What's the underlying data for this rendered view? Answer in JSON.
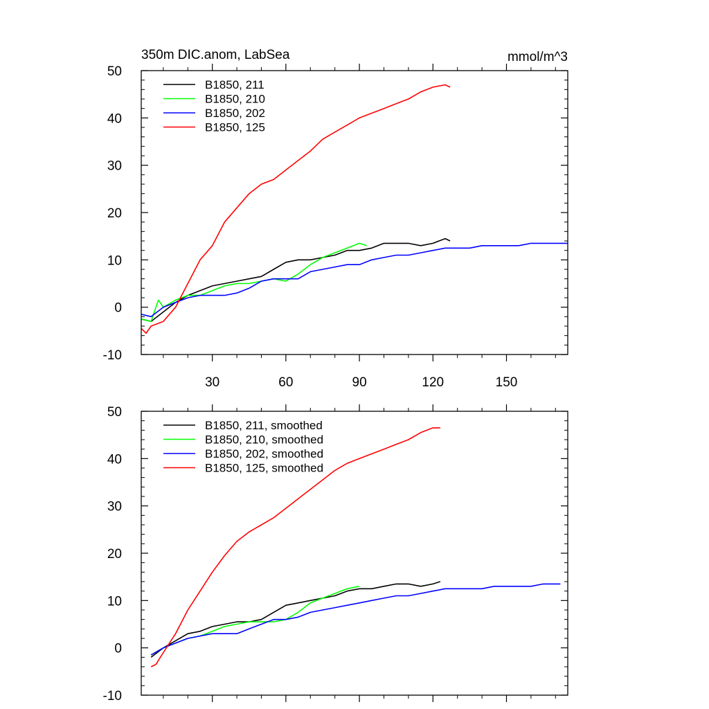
{
  "chart_data": [
    {
      "type": "line",
      "title": "350m DIC.anom, LabSea",
      "units": "mmol/m^3",
      "xlim": [
        1,
        175
      ],
      "ylim": [
        -10,
        50
      ],
      "xticks": [
        30,
        60,
        90,
        120,
        150
      ],
      "yticks": [
        -10,
        0,
        10,
        20,
        30,
        40,
        50
      ],
      "grid": false,
      "legend": "top-left",
      "series": [
        {
          "name": "B1850, 211",
          "color": "#000000",
          "x": [
            1,
            5,
            10,
            15,
            20,
            25,
            30,
            35,
            40,
            45,
            50,
            55,
            60,
            65,
            70,
            75,
            80,
            85,
            90,
            95,
            100,
            105,
            110,
            115,
            120,
            125,
            127
          ],
          "y": [
            -2.5,
            -3,
            -1,
            1,
            2.5,
            3.5,
            4.5,
            5,
            5.5,
            6,
            6.5,
            8,
            9.5,
            10,
            10,
            10.5,
            11,
            12,
            12,
            12.5,
            13.5,
            13.5,
            13.5,
            13,
            13.5,
            14.5,
            14
          ]
        },
        {
          "name": "B1850, 210",
          "color": "#00ff00",
          "x": [
            1,
            5,
            8,
            10,
            15,
            20,
            25,
            30,
            35,
            40,
            45,
            50,
            55,
            60,
            65,
            70,
            75,
            80,
            85,
            90,
            93
          ],
          "y": [
            -2.5,
            -3,
            1.5,
            0,
            1.5,
            2.5,
            2.5,
            3.5,
            4.5,
            5,
            5,
            5.5,
            6,
            5.5,
            7,
            9,
            10.5,
            11.5,
            12.5,
            13.5,
            13
          ]
        },
        {
          "name": "B1850, 202",
          "color": "#0000ff",
          "x": [
            1,
            5,
            10,
            15,
            20,
            25,
            30,
            35,
            40,
            45,
            50,
            55,
            60,
            65,
            70,
            75,
            80,
            85,
            90,
            95,
            100,
            105,
            110,
            115,
            120,
            125,
            130,
            135,
            140,
            145,
            150,
            155,
            160,
            165,
            170,
            175
          ],
          "y": [
            -1.5,
            -2,
            0,
            1,
            2,
            2.5,
            2.5,
            2.5,
            3,
            4,
            5.5,
            6,
            6,
            6,
            7.5,
            8,
            8.5,
            9,
            9,
            10,
            10.5,
            11,
            11,
            11.5,
            12,
            12.5,
            12.5,
            12.5,
            13,
            13,
            13,
            13,
            13.5,
            13.5,
            13.5,
            13.5
          ]
        },
        {
          "name": "B1850, 125",
          "color": "#ff0000",
          "x": [
            1,
            3,
            5,
            10,
            15,
            20,
            25,
            30,
            35,
            40,
            45,
            50,
            55,
            60,
            65,
            70,
            75,
            80,
            85,
            90,
            95,
            100,
            105,
            110,
            115,
            120,
            125,
            127
          ],
          "y": [
            -4.5,
            -5.5,
            -4,
            -3,
            0,
            5,
            10,
            13,
            18,
            21,
            24,
            26,
            27,
            29,
            31,
            33,
            35.5,
            37,
            38.5,
            40,
            41,
            42,
            43,
            44,
            45.5,
            46.5,
            47,
            46.5
          ]
        }
      ]
    },
    {
      "type": "line",
      "xlim": [
        1,
        175
      ],
      "ylim": [
        -10,
        50
      ],
      "xticks": [
        30,
        60,
        90,
        120,
        150
      ],
      "yticks": [
        -10,
        0,
        10,
        20,
        30,
        40,
        50
      ],
      "grid": false,
      "legend": "top-left",
      "series": [
        {
          "name": "B1850, 211, smoothed",
          "color": "#000000",
          "x": [
            5,
            10,
            15,
            20,
            25,
            30,
            35,
            40,
            45,
            50,
            55,
            60,
            65,
            70,
            75,
            80,
            85,
            90,
            95,
            100,
            105,
            110,
            115,
            120,
            123
          ],
          "y": [
            -2,
            0,
            1.5,
            3,
            3.5,
            4.5,
            5,
            5.5,
            5.5,
            6,
            7.5,
            9,
            9.5,
            10,
            10.5,
            11,
            12,
            12.5,
            12.5,
            13,
            13.5,
            13.5,
            13,
            13.5,
            14
          ]
        },
        {
          "name": "B1850, 210, smoothed",
          "color": "#00ff00",
          "x": [
            5,
            10,
            15,
            20,
            25,
            30,
            35,
            40,
            45,
            50,
            55,
            60,
            65,
            70,
            75,
            80,
            85,
            90
          ],
          "y": [
            -1.5,
            0,
            1,
            2,
            2.5,
            3.5,
            4.5,
            5,
            5.5,
            5.5,
            5.5,
            6,
            7.5,
            9.5,
            10.5,
            11.5,
            12.5,
            13
          ]
        },
        {
          "name": "B1850, 202, smoothed",
          "color": "#0000ff",
          "x": [
            5,
            10,
            15,
            20,
            25,
            30,
            35,
            40,
            45,
            50,
            55,
            60,
            65,
            70,
            75,
            80,
            85,
            90,
            95,
            100,
            105,
            110,
            115,
            120,
            125,
            130,
            135,
            140,
            145,
            150,
            155,
            160,
            165,
            170,
            172
          ],
          "y": [
            -1.5,
            0,
            1,
            2,
            2.5,
            3,
            3,
            3,
            4,
            5,
            6,
            6,
            6.5,
            7.5,
            8,
            8.5,
            9,
            9.5,
            10,
            10.5,
            11,
            11,
            11.5,
            12,
            12.5,
            12.5,
            12.5,
            12.5,
            13,
            13,
            13,
            13,
            13.5,
            13.5,
            13.5
          ]
        },
        {
          "name": "B1850, 125, smoothed",
          "color": "#ff0000",
          "x": [
            5,
            7,
            10,
            15,
            20,
            25,
            30,
            35,
            40,
            45,
            50,
            55,
            60,
            65,
            70,
            75,
            80,
            85,
            90,
            95,
            100,
            105,
            110,
            115,
            120,
            123
          ],
          "y": [
            -4,
            -3.5,
            -1,
            3,
            8,
            12,
            16,
            19.5,
            22.5,
            24.5,
            26,
            27.5,
            29.5,
            31.5,
            33.5,
            35.5,
            37.5,
            39,
            40,
            41,
            42,
            43,
            44,
            45.5,
            46.5,
            46.5
          ]
        }
      ]
    }
  ]
}
